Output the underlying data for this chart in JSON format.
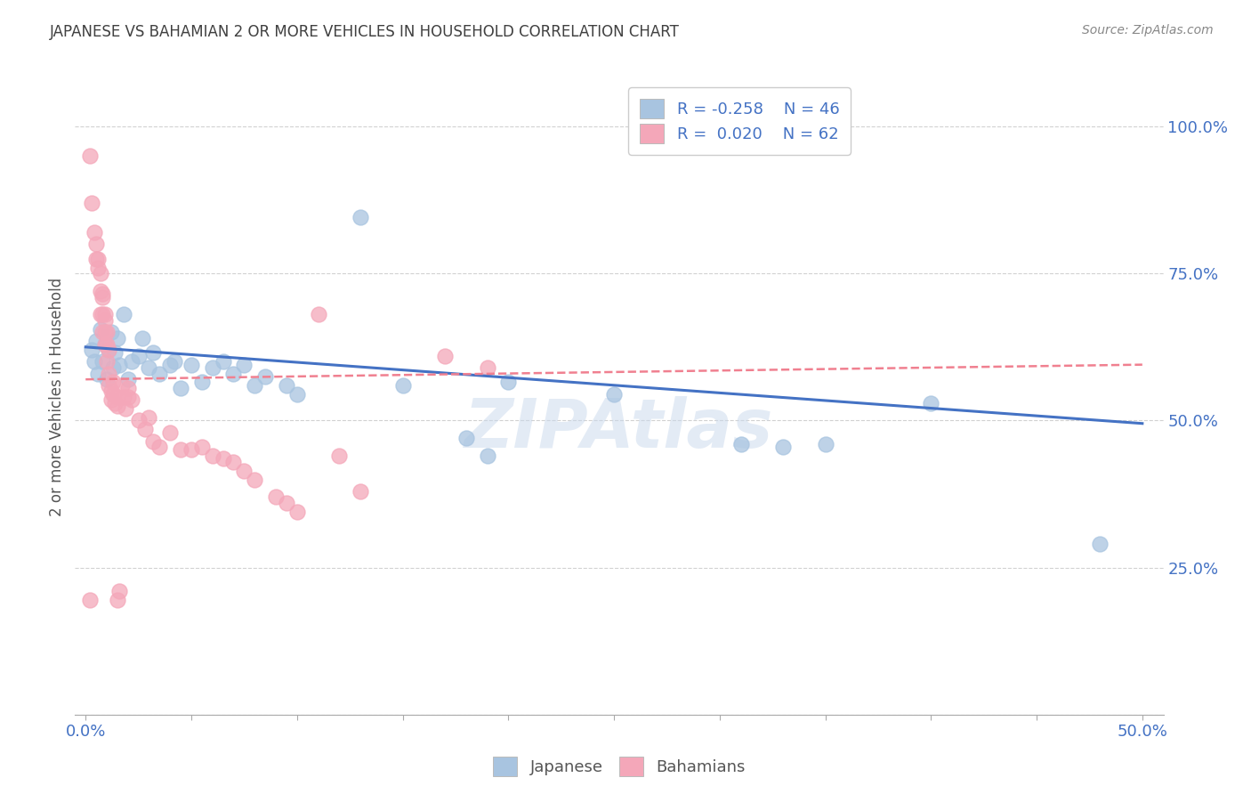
{
  "title": "JAPANESE VS BAHAMIAN 2 OR MORE VEHICLES IN HOUSEHOLD CORRELATION CHART",
  "source": "Source: ZipAtlas.com",
  "xlim": [
    -0.5,
    51.0
  ],
  "ylim": [
    0.0,
    108.0
  ],
  "ylabel": "2 or more Vehicles in Household",
  "watermark": "ZIPAtlas",
  "legend_japanese_R": "R = -0.258",
  "legend_japanese_N": "N = 46",
  "legend_bahamian_R": "R =  0.020",
  "legend_bahamian_N": "N = 62",
  "japanese_color": "#a8c4e0",
  "bahamian_color": "#f4a7b9",
  "japanese_line_color": "#4472c4",
  "bahamian_line_color": "#f08090",
  "title_color": "#404040",
  "axis_label_color": "#4472c4",
  "source_color": "#888888",
  "ylabel_color": "#555555",
  "xticks": [
    0,
    5,
    10,
    15,
    20,
    25,
    30,
    35,
    40,
    45,
    50
  ],
  "xtick_labels_show": [
    0,
    50
  ],
  "yticks_right": [
    0,
    25,
    50,
    75,
    100
  ],
  "ytick_right_labels": [
    "",
    "25.0%",
    "50.0%",
    "75.0%",
    "100.0%"
  ],
  "japanese_points": [
    [
      0.3,
      62
    ],
    [
      0.4,
      60
    ],
    [
      0.5,
      63.5
    ],
    [
      0.6,
      58
    ],
    [
      0.7,
      65.5
    ],
    [
      0.8,
      60
    ],
    [
      0.9,
      63
    ],
    [
      1.0,
      57
    ],
    [
      1.1,
      62
    ],
    [
      1.2,
      65
    ],
    [
      1.3,
      59
    ],
    [
      1.4,
      61.5
    ],
    [
      1.5,
      64
    ],
    [
      1.6,
      59.5
    ],
    [
      1.8,
      68
    ],
    [
      2.0,
      57
    ],
    [
      2.2,
      60
    ],
    [
      2.5,
      61
    ],
    [
      2.7,
      64
    ],
    [
      3.0,
      59
    ],
    [
      3.2,
      61.5
    ],
    [
      3.5,
      58
    ],
    [
      4.0,
      59.5
    ],
    [
      4.2,
      60
    ],
    [
      4.5,
      55.5
    ],
    [
      5.0,
      59.5
    ],
    [
      5.5,
      56.5
    ],
    [
      6.0,
      59
    ],
    [
      6.5,
      60
    ],
    [
      7.0,
      58
    ],
    [
      7.5,
      59.5
    ],
    [
      8.0,
      56
    ],
    [
      8.5,
      57.5
    ],
    [
      9.5,
      56
    ],
    [
      10.0,
      54.5
    ],
    [
      13.0,
      84.5
    ],
    [
      15.0,
      56
    ],
    [
      18.0,
      47
    ],
    [
      19.0,
      44
    ],
    [
      20.0,
      56.5
    ],
    [
      25.0,
      54.5
    ],
    [
      31.0,
      46
    ],
    [
      33.0,
      45.5
    ],
    [
      35.0,
      46
    ],
    [
      40.0,
      53
    ],
    [
      48.0,
      29
    ]
  ],
  "bahamian_points": [
    [
      0.2,
      95
    ],
    [
      0.3,
      87
    ],
    [
      0.4,
      82
    ],
    [
      0.5,
      80
    ],
    [
      0.5,
      77.5
    ],
    [
      0.6,
      77.5
    ],
    [
      0.6,
      76
    ],
    [
      0.7,
      75
    ],
    [
      0.7,
      72
    ],
    [
      0.7,
      68
    ],
    [
      0.8,
      71.5
    ],
    [
      0.8,
      71
    ],
    [
      0.8,
      68
    ],
    [
      0.8,
      65
    ],
    [
      0.9,
      68
    ],
    [
      0.9,
      67
    ],
    [
      0.9,
      65
    ],
    [
      0.9,
      63
    ],
    [
      1.0,
      65
    ],
    [
      1.0,
      63
    ],
    [
      1.0,
      60
    ],
    [
      1.1,
      62
    ],
    [
      1.1,
      58
    ],
    [
      1.1,
      56
    ],
    [
      1.2,
      55
    ],
    [
      1.2,
      53.5
    ],
    [
      1.3,
      56.5
    ],
    [
      1.3,
      54.5
    ],
    [
      1.4,
      53
    ],
    [
      1.5,
      54
    ],
    [
      1.5,
      52.5
    ],
    [
      1.7,
      56
    ],
    [
      1.8,
      54
    ],
    [
      1.9,
      52
    ],
    [
      2.0,
      55.5
    ],
    [
      2.0,
      54
    ],
    [
      2.2,
      53.5
    ],
    [
      2.5,
      50
    ],
    [
      2.8,
      48.5
    ],
    [
      3.0,
      50.5
    ],
    [
      3.2,
      46.5
    ],
    [
      3.5,
      45.5
    ],
    [
      4.0,
      48
    ],
    [
      4.5,
      45
    ],
    [
      5.0,
      45
    ],
    [
      5.5,
      45.5
    ],
    [
      6.0,
      44
    ],
    [
      6.5,
      43.5
    ],
    [
      7.0,
      43
    ],
    [
      7.5,
      41.5
    ],
    [
      8.0,
      40
    ],
    [
      9.0,
      37
    ],
    [
      9.5,
      36
    ],
    [
      10.0,
      34.5
    ],
    [
      11.0,
      68
    ],
    [
      12.0,
      44
    ],
    [
      13.0,
      38
    ],
    [
      1.5,
      19.5
    ],
    [
      1.6,
      21
    ],
    [
      0.2,
      19.5
    ],
    [
      17.0,
      61
    ],
    [
      19.0,
      59
    ]
  ],
  "jp_trend": [
    0.0,
    62.5,
    50.0,
    49.5
  ],
  "bh_trend": [
    0.0,
    57.0,
    50.0,
    59.5
  ]
}
